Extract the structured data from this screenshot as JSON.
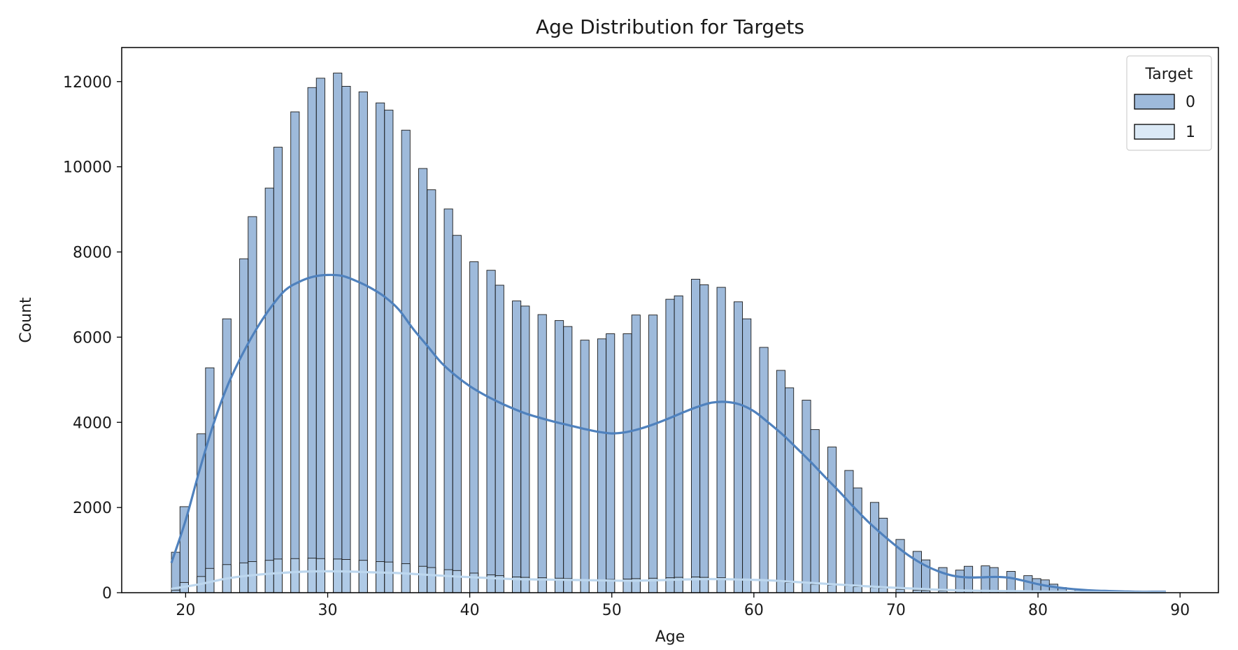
{
  "chart_data": {
    "type": "histogram",
    "title": "Age Distribution for Targets",
    "xlabel": "Age",
    "ylabel": "Count",
    "xlim": [
      15.5,
      92.7
    ],
    "ylim": [
      0,
      12800
    ],
    "x_ticks": [
      20,
      30,
      40,
      50,
      60,
      70,
      80,
      90
    ],
    "y_ticks": [
      0,
      2000,
      4000,
      6000,
      8000,
      10000,
      12000
    ],
    "grid": false,
    "legend": {
      "title": "Target",
      "position": "top-right"
    },
    "bins": {
      "left": [
        19.0,
        19.6,
        20.2,
        20.8,
        21.4,
        22.0,
        22.6,
        23.2,
        23.8,
        24.4,
        25.0,
        25.6,
        26.2,
        26.8,
        27.4,
        28.0,
        28.6,
        29.2,
        29.8,
        30.4,
        31.0,
        31.6,
        32.2,
        32.8,
        33.4,
        34.0,
        34.6,
        35.2,
        35.8,
        36.4,
        37.0,
        37.6,
        38.2,
        38.8,
        39.4,
        40.0,
        40.6,
        41.2,
        41.8,
        42.4,
        43.0,
        43.6,
        44.2,
        44.8,
        45.4,
        46.0,
        46.6,
        47.2,
        47.8,
        48.4,
        49.0,
        49.6,
        50.2,
        50.8,
        51.4,
        52.0,
        52.6,
        53.2,
        53.8,
        54.4,
        55.0,
        55.6,
        56.2,
        56.8,
        57.4,
        58.0,
        58.6,
        59.2,
        59.8,
        60.4,
        61.0,
        61.6,
        62.2,
        62.8,
        63.4,
        64.0,
        64.6,
        65.2,
        65.8,
        66.4,
        67.0,
        67.6,
        68.2,
        68.8,
        69.4,
        70.0,
        70.6,
        71.2,
        71.8,
        72.4,
        73.0,
        73.6,
        74.2,
        74.8,
        75.4,
        76.0,
        76.6,
        77.2,
        77.8,
        78.4,
        79.0,
        79.6,
        80.2,
        80.8,
        81.4,
        82.0,
        82.6,
        83.2,
        83.8,
        84.4,
        85.0,
        85.6,
        86.2,
        86.8,
        87.4,
        88.0,
        88.6
      ],
      "width": 0.6
    },
    "series": [
      {
        "name": "0",
        "color": "#4f81bd",
        "values": [
          950,
          2020,
          0,
          3730,
          5280,
          0,
          6430,
          0,
          7840,
          8830,
          0,
          9500,
          10460,
          0,
          11290,
          0,
          11860,
          12080,
          0,
          12200,
          11890,
          0,
          11760,
          0,
          11500,
          11330,
          0,
          10860,
          0,
          9960,
          9460,
          0,
          9010,
          8390,
          0,
          7770,
          0,
          7570,
          7220,
          0,
          6850,
          6730,
          0,
          6530,
          0,
          6390,
          6250,
          0,
          5930,
          0,
          5960,
          6080,
          0,
          6080,
          6520,
          0,
          6520,
          0,
          6890,
          6970,
          0,
          7360,
          7230,
          0,
          7170,
          0,
          6830,
          6430,
          0,
          5760,
          0,
          5220,
          4810,
          0,
          4520,
          3830,
          0,
          3420,
          0,
          2870,
          2460,
          0,
          2120,
          1750,
          0,
          1250,
          0,
          970,
          770,
          0,
          590,
          0,
          530,
          620,
          0,
          630,
          590,
          0,
          500,
          0,
          400,
          330,
          300,
          200,
          120,
          0,
          80,
          60,
          40,
          30,
          20,
          20,
          10,
          10,
          0,
          0,
          0
        ]
      },
      {
        "name": "1",
        "color": "#bdd7ee",
        "values": [
          60,
          240,
          0,
          380,
          570,
          0,
          660,
          0,
          700,
          730,
          0,
          760,
          790,
          0,
          800,
          0,
          810,
          800,
          0,
          790,
          780,
          0,
          760,
          0,
          730,
          720,
          0,
          680,
          0,
          620,
          590,
          0,
          540,
          520,
          0,
          460,
          0,
          420,
          400,
          0,
          370,
          360,
          0,
          350,
          0,
          340,
          330,
          0,
          310,
          0,
          300,
          310,
          0,
          320,
          330,
          0,
          340,
          0,
          350,
          360,
          0,
          370,
          360,
          0,
          350,
          0,
          330,
          310,
          0,
          280,
          0,
          260,
          240,
          0,
          220,
          200,
          0,
          180,
          0,
          160,
          140,
          0,
          120,
          110,
          0,
          80,
          0,
          60,
          50,
          0,
          40,
          0,
          40,
          40,
          0,
          40,
          40,
          0,
          30,
          0,
          30,
          20,
          20,
          20,
          10,
          0,
          10,
          10,
          0,
          0,
          0,
          0,
          0,
          0,
          0,
          0,
          0
        ]
      }
    ],
    "kde": [
      {
        "name": "0",
        "x": [
          19,
          20,
          21,
          22,
          23,
          24,
          25,
          26,
          27,
          28,
          29,
          30,
          31,
          32,
          33,
          34,
          35,
          36,
          37,
          38,
          39,
          40,
          41,
          42,
          43,
          44,
          45,
          46,
          47,
          48,
          49,
          50,
          51,
          52,
          53,
          54,
          55,
          56,
          57,
          58,
          59,
          60,
          61,
          62,
          63,
          64,
          65,
          66,
          67,
          68,
          69,
          70,
          71,
          72,
          73,
          74,
          75,
          76,
          77,
          78,
          79,
          80,
          81,
          82,
          83,
          84,
          85,
          86,
          87,
          88,
          89
        ],
        "y": [
          700,
          1700,
          2900,
          4000,
          4900,
          5600,
          6200,
          6700,
          7100,
          7300,
          7420,
          7460,
          7440,
          7320,
          7160,
          6950,
          6650,
          6200,
          5800,
          5400,
          5100,
          4850,
          4650,
          4480,
          4330,
          4200,
          4100,
          4010,
          3930,
          3850,
          3780,
          3740,
          3770,
          3850,
          3960,
          4090,
          4230,
          4360,
          4460,
          4480,
          4420,
          4260,
          4000,
          3720,
          3400,
          3070,
          2720,
          2380,
          2020,
          1680,
          1380,
          1100,
          850,
          650,
          500,
          400,
          360,
          360,
          370,
          350,
          280,
          200,
          140,
          100,
          70,
          50,
          40,
          30,
          20,
          20,
          20
        ]
      },
      {
        "name": "1",
        "x": [
          19,
          21,
          23,
          25,
          27,
          29,
          31,
          33,
          35,
          37,
          39,
          41,
          43,
          45,
          47,
          49,
          51,
          53,
          55,
          57,
          59,
          61,
          63,
          65,
          67,
          69,
          71,
          73,
          75,
          77,
          79,
          81,
          83,
          85,
          87,
          89
        ],
        "y": [
          90,
          200,
          340,
          420,
          470,
          500,
          500,
          480,
          460,
          420,
          380,
          350,
          320,
          310,
          300,
          290,
          280,
          290,
          310,
          320,
          310,
          290,
          250,
          210,
          170,
          130,
          100,
          70,
          50,
          40,
          35,
          25,
          15,
          10,
          5,
          5
        ]
      }
    ]
  }
}
